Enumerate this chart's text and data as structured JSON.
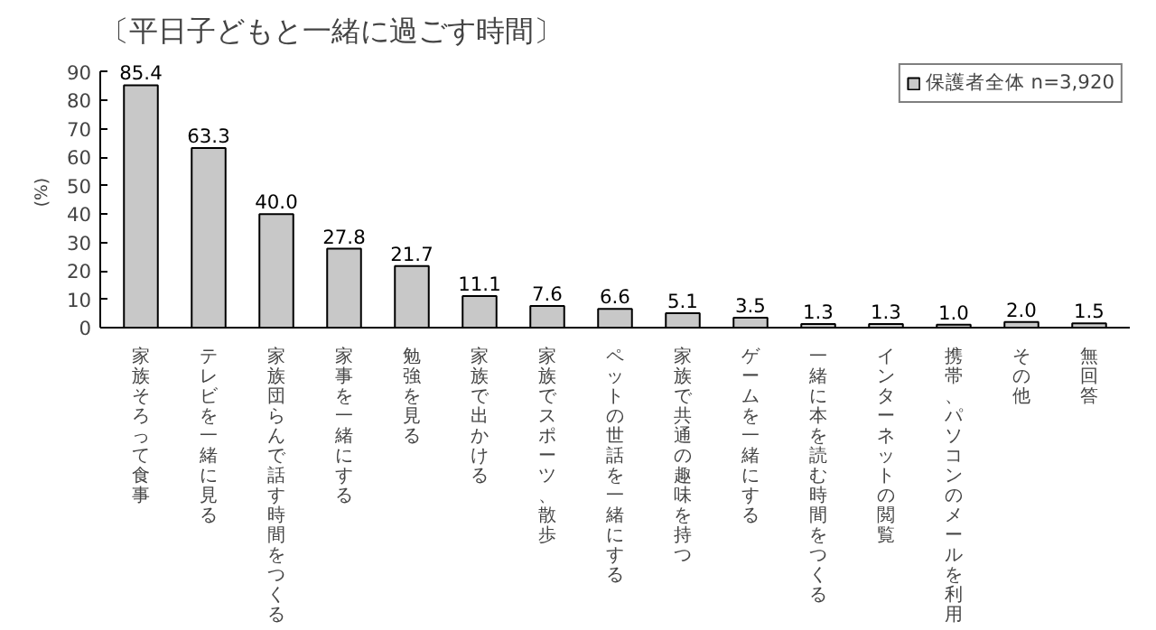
{
  "chart_data": {
    "type": "bar",
    "title": "〔平日子どもと一緒に過ごす時間〕",
    "ylabel": "(%)",
    "categories": [
      "家族そろって食事",
      "テレビを一緒に見る",
      "家族団らんで話す時間をつくる",
      "家事を一緒にする",
      "勉強を見る",
      "家族で出かける",
      "家族でスポーツ、散歩",
      "ペットの世話を一緒にする",
      "家族で共通の趣味を持つ",
      "ゲームを一緒にする",
      "一緒に本を読む時間をつくる",
      "インターネットの閲覧",
      "携帯、パソコンのメールを利用",
      "その他",
      "無回答"
    ],
    "series": [
      {
        "name": "保護者全体 n=3,920",
        "color": "#c8c8c8",
        "values": [
          85.4,
          63.3,
          40.0,
          27.8,
          21.7,
          11.1,
          7.6,
          6.6,
          5.1,
          3.5,
          1.3,
          1.3,
          1.0,
          2.0,
          1.5
        ]
      }
    ],
    "value_labels": [
      "85.4",
      "63.3",
      "40.0",
      "27.8",
      "21.7",
      "11.1",
      "7.6",
      "6.6",
      "5.1",
      "3.5",
      "1.3",
      "1.3",
      "1.0",
      "2.0",
      "1.5"
    ],
    "ylim": [
      0,
      90
    ],
    "yticks": [
      0,
      10,
      20,
      30,
      40,
      50,
      60,
      70,
      80,
      90
    ],
    "grid": false,
    "legend": "top right"
  }
}
